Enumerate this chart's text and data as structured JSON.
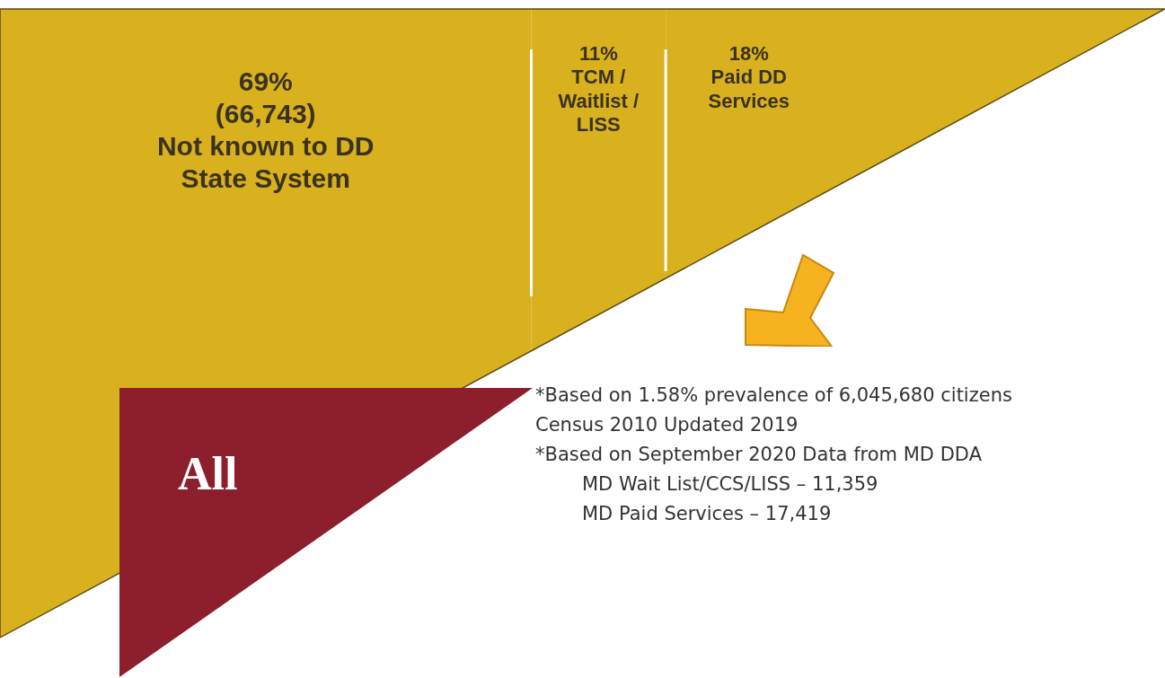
{
  "chart_data": {
    "type": "other",
    "categories": [
      "Not known to DD State System",
      "TCM / Waitlist / LISS",
      "Paid DD Services"
    ],
    "values": [
      69,
      11,
      18
    ],
    "value_labels": [
      "69% (66,743)",
      "11%",
      "18%"
    ],
    "colors": [
      "#d9b01e",
      "#d9b01e",
      "#d9b01e"
    ],
    "annotations": [
      "All",
      "*Based on 1.58% prevalence of 6,045,680 citizens",
      "Census 2010 Updated 2019",
      "*Based on September 2020 Data from MD DDA",
      "MD Wait List/CCS/LISS – 11,359",
      "MD Paid Services – 17,419"
    ]
  }
}
